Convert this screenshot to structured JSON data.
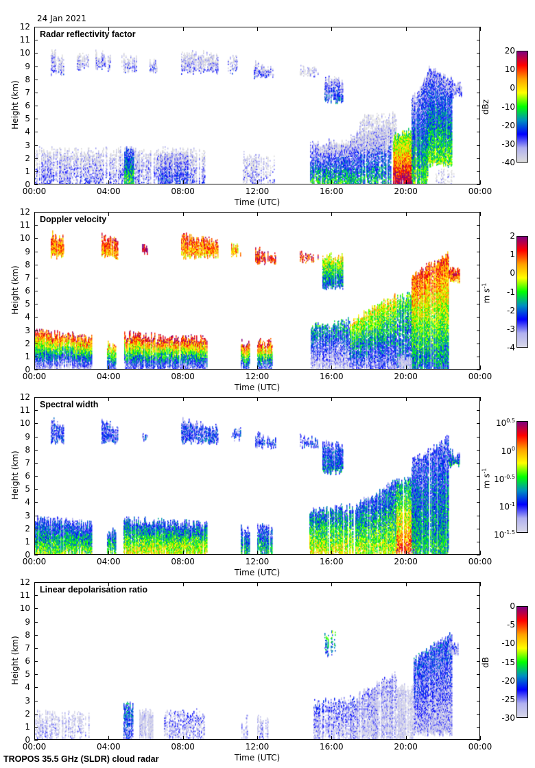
{
  "date": "24 Jan 2021",
  "footer": "TROPOS 35.5 GHz (SLDR) cloud radar",
  "chart_data": [
    {
      "type": "heatmap",
      "title": "Radar reflectivity factor",
      "xlabel": "Time (UTC)",
      "ylabel": "Height (km)",
      "xlim": [
        0,
        24
      ],
      "ylim": [
        0,
        12
      ],
      "xticks": [
        "00:00",
        "04:00",
        "08:00",
        "12:00",
        "16:00",
        "20:00",
        "00:00"
      ],
      "yticks": [
        "0",
        "1",
        "2",
        "3",
        "4",
        "5",
        "6",
        "7",
        "8",
        "9",
        "10",
        "11",
        "12"
      ],
      "colorbar": {
        "unit": "dBz",
        "unit_sup": "",
        "range": [
          -40,
          20
        ],
        "ticks": [
          {
            "v": 20,
            "base": "20",
            "exp": ""
          },
          {
            "v": 10,
            "base": "10",
            "exp": ""
          },
          {
            "v": 0,
            "base": "0",
            "exp": ""
          },
          {
            "v": -10,
            "base": "-10",
            "exp": ""
          },
          {
            "v": -20,
            "base": "-20",
            "exp": ""
          },
          {
            "v": -30,
            "base": "-30",
            "exp": ""
          },
          {
            "v": -40,
            "base": "-40",
            "exp": ""
          }
        ],
        "colors": [
          "#dcdcdc",
          "#b0b0f0",
          "#0000ff",
          "#0090c0",
          "#00ff00",
          "#ffff00",
          "#ffa000",
          "#ff0000",
          "#800080"
        ]
      },
      "echo_regions_columns": [
        "t_start_h",
        "t_end_h",
        "base_km",
        "top_start_km",
        "top_end_km",
        "value_at_base",
        "value_at_top",
        "coverage"
      ],
      "echo_regions": [
        [
          0,
          9.2,
          0,
          2.5,
          2.5,
          -30,
          -40,
          0.55
        ],
        [
          4.85,
          5.35,
          0,
          2.6,
          2.6,
          -10,
          -30,
          0.9
        ],
        [
          6.6,
          8.3,
          0,
          2.2,
          2.2,
          -25,
          -35,
          0.7
        ],
        [
          0.9,
          1.6,
          8.4,
          10,
          9.6,
          -30,
          -40,
          0.6
        ],
        [
          2.3,
          2.9,
          8.8,
          9.8,
          9.8,
          -32,
          -40,
          0.5
        ],
        [
          3.2,
          4.1,
          8.8,
          10,
          9.6,
          -30,
          -40,
          0.6
        ],
        [
          4.7,
          5.5,
          8.6,
          9.8,
          9.6,
          -32,
          -40,
          0.5
        ],
        [
          6.2,
          6.6,
          8.7,
          9.3,
          9.3,
          -30,
          -38,
          0.6
        ],
        [
          7.9,
          9.9,
          8.6,
          10.1,
          9.6,
          -32,
          -40,
          0.6
        ],
        [
          10.4,
          11,
          8.6,
          9.5,
          9.5,
          -30,
          -38,
          0.4
        ],
        [
          11.8,
          12.9,
          8.2,
          9.1,
          8.6,
          -28,
          -38,
          0.6
        ],
        [
          14.3,
          15.3,
          8.3,
          8.8,
          8.6,
          -35,
          -40,
          0.5
        ],
        [
          15.6,
          16.6,
          6.3,
          7.9,
          7.8,
          -22,
          -35,
          0.8
        ],
        [
          11.2,
          13,
          0,
          2.2,
          1.8,
          -32,
          -40,
          0.4
        ],
        [
          14.8,
          17,
          0,
          3,
          3.2,
          -12,
          -38,
          0.7
        ],
        [
          17,
          19.2,
          0,
          3.6,
          4.5,
          -15,
          -38,
          0.7
        ],
        [
          17.5,
          19.5,
          2.5,
          5,
          5.2,
          -38,
          -40,
          0.5
        ],
        [
          19.3,
          20.5,
          0,
          3.6,
          4,
          18,
          -10,
          0.95
        ],
        [
          20.3,
          21.2,
          0,
          6.5,
          8.2,
          -10,
          -32,
          0.85
        ],
        [
          21.2,
          22.5,
          1.5,
          8.8,
          7.8,
          -8,
          -32,
          0.85
        ],
        [
          22.5,
          23,
          6.8,
          7.6,
          7.4,
          -30,
          -35,
          0.8
        ],
        [
          21.6,
          23,
          0,
          1,
          1,
          -38,
          -40,
          0.2
        ]
      ]
    },
    {
      "type": "heatmap",
      "title": "Doppler velocity",
      "xlabel": "Time (UTC)",
      "ylabel": "Height (km)",
      "xlim": [
        0,
        24
      ],
      "ylim": [
        0,
        12
      ],
      "xticks": [
        "00:00",
        "04:00",
        "08:00",
        "12:00",
        "16:00",
        "20:00",
        "00:00"
      ],
      "yticks": [
        "0",
        "1",
        "2",
        "3",
        "4",
        "5",
        "6",
        "7",
        "8",
        "9",
        "10",
        "11",
        "12"
      ],
      "colorbar": {
        "unit": "m s",
        "unit_sup": "-1",
        "range": [
          -4,
          2
        ],
        "ticks": [
          {
            "v": 2,
            "base": "2",
            "exp": ""
          },
          {
            "v": 1,
            "base": "1",
            "exp": ""
          },
          {
            "v": 0,
            "base": "0",
            "exp": ""
          },
          {
            "v": -1,
            "base": "-1",
            "exp": ""
          },
          {
            "v": -2,
            "base": "-2",
            "exp": ""
          },
          {
            "v": -3,
            "base": "-3",
            "exp": ""
          },
          {
            "v": -4,
            "base": "-4",
            "exp": ""
          }
        ],
        "colors": [
          "#d8d8e8",
          "#b0b0f0",
          "#0000ff",
          "#0090c0",
          "#00ff00",
          "#ffff00",
          "#ffa000",
          "#ff0000",
          "#800080"
        ]
      },
      "echo_regions_columns": [
        "t_start_h",
        "t_end_h",
        "base_km",
        "top_start_km",
        "top_end_km",
        "value_at_base",
        "value_at_top",
        "coverage"
      ],
      "echo_regions": [
        [
          0,
          3.1,
          0,
          2.8,
          2.3,
          -3.6,
          1.3,
          0.85
        ],
        [
          3.9,
          4.4,
          0,
          1.8,
          1.8,
          -3,
          0.5,
          0.8
        ],
        [
          4.8,
          9.3,
          0,
          2.6,
          2.2,
          -3.2,
          1.5,
          0.85
        ],
        [
          11.1,
          11.6,
          0,
          2,
          2,
          -3,
          1.5,
          0.8
        ],
        [
          12,
          12.8,
          0,
          2,
          2,
          -3,
          1.5,
          0.8
        ],
        [
          0.9,
          1.6,
          8.6,
          10.2,
          9.8,
          0.3,
          0.8,
          0.9
        ],
        [
          3.6,
          4.5,
          8.6,
          10,
          9.6,
          0.3,
          1,
          0.8
        ],
        [
          5.8,
          6.1,
          8.8,
          9.2,
          9.2,
          1.5,
          1.9,
          0.9
        ],
        [
          7.9,
          9.9,
          8.6,
          10.2,
          9.5,
          0.2,
          1,
          0.8
        ],
        [
          10.6,
          11.1,
          8.8,
          9.3,
          9.3,
          0.2,
          0.3,
          0.8
        ],
        [
          11.9,
          13,
          8.2,
          9,
          8.6,
          1,
          1.3,
          0.8
        ],
        [
          14.3,
          15.3,
          8.3,
          8.8,
          8.6,
          1,
          1.3,
          0.7
        ],
        [
          15.5,
          16.6,
          6.3,
          8.5,
          8.5,
          -2.2,
          -0.2,
          0.85
        ],
        [
          14.8,
          17,
          0,
          3.2,
          3.6,
          -3.8,
          -1.5,
          0.75
        ],
        [
          17,
          19.5,
          0,
          3.6,
          5.5,
          -3.2,
          0,
          0.8
        ],
        [
          19.5,
          20.5,
          0,
          5.5,
          5.5,
          -2.5,
          -1,
          0.7
        ],
        [
          20.3,
          22.3,
          0,
          7,
          8.8,
          -2,
          1,
          0.85
        ],
        [
          22.3,
          22.9,
          6.8,
          7.8,
          7.4,
          0.5,
          1.5,
          0.9
        ],
        [
          19.6,
          20.3,
          0,
          0.8,
          0.8,
          -4,
          -4,
          0.9
        ]
      ]
    },
    {
      "type": "heatmap",
      "title": "Spectral width",
      "xlabel": "Time (UTC)",
      "ylabel": "Height (km)",
      "xlim": [
        0,
        24
      ],
      "ylim": [
        0,
        12
      ],
      "xticks": [
        "00:00",
        "04:00",
        "08:00",
        "12:00",
        "16:00",
        "20:00",
        "00:00"
      ],
      "yticks": [
        "0",
        "1",
        "2",
        "3",
        "4",
        "5",
        "6",
        "7",
        "8",
        "9",
        "10",
        "11",
        "12"
      ],
      "colorbar": {
        "unit": "m s",
        "unit_sup": "-1",
        "scale": "log",
        "range": [
          -1.5,
          0.5
        ],
        "ticks": [
          {
            "v": 0.5,
            "base": "10",
            "exp": "0.5"
          },
          {
            "v": 0,
            "base": "10",
            "exp": "0"
          },
          {
            "v": -0.5,
            "base": "10",
            "exp": "-0.5"
          },
          {
            "v": -1,
            "base": "10",
            "exp": "-1"
          },
          {
            "v": -1.5,
            "base": "10",
            "exp": "-1.5"
          }
        ],
        "colors": [
          "#d8d8e8",
          "#b0b0f0",
          "#0000ff",
          "#0090c0",
          "#00ff00",
          "#ffff00",
          "#ffa000",
          "#ff0000",
          "#800080"
        ]
      },
      "echo_regions_columns": [
        "t_start_h",
        "t_end_h",
        "base_km",
        "top_start_km",
        "top_end_km",
        "value_at_base",
        "value_at_top",
        "coverage"
      ],
      "echo_regions": [
        [
          0,
          3.1,
          0,
          2.6,
          2.3,
          -0.4,
          -1.1,
          0.85
        ],
        [
          3.9,
          4.4,
          0,
          1.8,
          1.8,
          -0.5,
          -1,
          0.8
        ],
        [
          4.8,
          9.3,
          0,
          2.6,
          2.2,
          -0.2,
          -1,
          0.85
        ],
        [
          11.1,
          11.6,
          0,
          2,
          2,
          -0.6,
          -1.1,
          0.8
        ],
        [
          12,
          12.8,
          0,
          2,
          2,
          -0.6,
          -1.1,
          0.8
        ],
        [
          0.9,
          1.6,
          8.6,
          10.2,
          9.8,
          -1.05,
          -1.1,
          0.8
        ],
        [
          3.6,
          4.5,
          8.6,
          10,
          9.6,
          -1.05,
          -1.1,
          0.8
        ],
        [
          5.8,
          6.1,
          8.8,
          9.2,
          9.2,
          -1,
          -1.1,
          0.8
        ],
        [
          7.9,
          9.9,
          8.6,
          10.2,
          9.5,
          -1,
          -1.1,
          0.8
        ],
        [
          10.6,
          11.1,
          8.8,
          9.3,
          9.3,
          -1,
          -1.1,
          0.7
        ],
        [
          11.9,
          13,
          8.2,
          9,
          8.6,
          -1,
          -1.1,
          0.8
        ],
        [
          14.3,
          15.3,
          8.3,
          8.8,
          8.6,
          -1.05,
          -1.1,
          0.7
        ],
        [
          15.5,
          16.6,
          6.3,
          8.3,
          8.3,
          -0.8,
          -1.1,
          0.85
        ],
        [
          14.8,
          17.2,
          0,
          3.2,
          3.6,
          -0.2,
          -0.9,
          0.8
        ],
        [
          17.2,
          19.5,
          0,
          3.6,
          5.5,
          -0.3,
          -1,
          0.8
        ],
        [
          19.5,
          20.6,
          0,
          5.5,
          5.6,
          0.2,
          -0.8,
          0.75
        ],
        [
          20.3,
          22.3,
          0,
          7,
          8.8,
          -0.6,
          -1.1,
          0.85
        ],
        [
          22.3,
          22.9,
          6.8,
          7.8,
          7.4,
          -0.7,
          -1.1,
          0.9
        ]
      ]
    },
    {
      "type": "heatmap",
      "title": "Linear depolarisation ratio",
      "xlabel": "Time (UTC)",
      "ylabel": "Height (km)",
      "xlim": [
        0,
        24
      ],
      "ylim": [
        0,
        12
      ],
      "xticks": [
        "00:00",
        "04:00",
        "08:00",
        "12:00",
        "16:00",
        "20:00",
        "00:00"
      ],
      "yticks": [
        "0",
        "1",
        "2",
        "3",
        "4",
        "5",
        "6",
        "7",
        "8",
        "9",
        "10",
        "11",
        "12"
      ],
      "colorbar": {
        "unit": "dB",
        "unit_sup": "",
        "range": [
          -30,
          0
        ],
        "ticks": [
          {
            "v": 0,
            "base": "0",
            "exp": ""
          },
          {
            "v": -5,
            "base": "-5",
            "exp": ""
          },
          {
            "v": -10,
            "base": "-10",
            "exp": ""
          },
          {
            "v": -15,
            "base": "-15",
            "exp": ""
          },
          {
            "v": -20,
            "base": "-20",
            "exp": ""
          },
          {
            "v": -25,
            "base": "-25",
            "exp": ""
          },
          {
            "v": -30,
            "base": "-30",
            "exp": ""
          }
        ],
        "colors": [
          "#d8d8e8",
          "#b0b0f0",
          "#0000ff",
          "#0090c0",
          "#00ff00",
          "#ffff00",
          "#ffa000",
          "#ff0000",
          "#800080"
        ]
      },
      "echo_regions_columns": [
        "t_start_h",
        "t_end_h",
        "base_km",
        "top_start_km",
        "top_end_km",
        "value_at_base",
        "value_at_top",
        "coverage"
      ],
      "echo_regions": [
        [
          0,
          3,
          0,
          2,
          1.8,
          -28,
          -30,
          0.5
        ],
        [
          4.8,
          5.3,
          0,
          2.5,
          2.5,
          -25,
          -20,
          0.7
        ],
        [
          5.6,
          6.4,
          0,
          2,
          2,
          -29,
          -30,
          0.8
        ],
        [
          6.9,
          9.2,
          0,
          2,
          2,
          -28,
          -26,
          0.5
        ],
        [
          11.1,
          11.5,
          0,
          1.6,
          1.6,
          -28,
          -28,
          0.5
        ],
        [
          12,
          12.6,
          0,
          1.6,
          1.6,
          -27,
          -30,
          0.5
        ],
        [
          15,
          17.3,
          0,
          2.8,
          3,
          -28,
          -25,
          0.6
        ],
        [
          17.3,
          19.5,
          0,
          3.2,
          5,
          -29,
          -27,
          0.75
        ],
        [
          19.5,
          20.4,
          0,
          3.8,
          4,
          -30,
          -30,
          0.7
        ],
        [
          20.4,
          22.5,
          0.5,
          6,
          8,
          -28,
          -22,
          0.85
        ],
        [
          22.3,
          22.8,
          6.6,
          7.6,
          7.2,
          -28,
          -25,
          0.9
        ],
        [
          15.6,
          16.2,
          6.5,
          8,
          8,
          -22,
          -15,
          0.4
        ]
      ]
    }
  ]
}
